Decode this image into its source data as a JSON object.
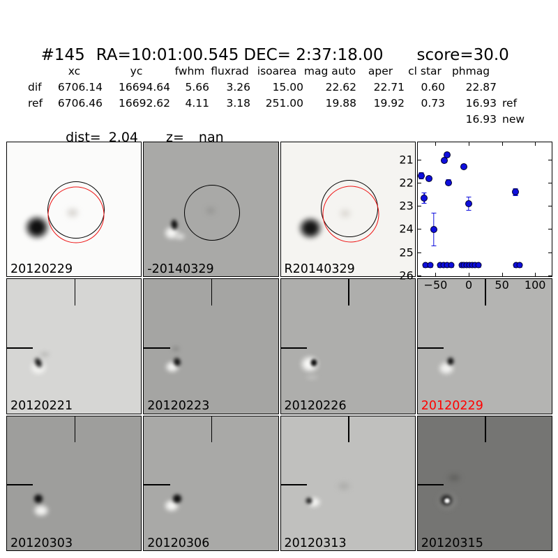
{
  "header": {
    "id": "#145",
    "ra": "RA=10:01:00.545",
    "dec": "DEC= 2:37:18.00",
    "score": "score=30.0"
  },
  "table": {
    "columns": [
      "xc",
      "yc",
      "fwhm",
      "fluxrad",
      "isoarea",
      "mag auto",
      "aper",
      "cl star",
      "phmag"
    ],
    "rows": [
      {
        "label": "dif",
        "values": [
          "6706.14",
          "16694.64",
          "5.66",
          "3.26",
          "15.00",
          "22.62",
          "22.71",
          "0.60",
          "22.87"
        ],
        "suffix": ""
      },
      {
        "label": "ref",
        "values": [
          "6706.46",
          "16692.62",
          "4.11",
          "3.18",
          "251.00",
          "19.88",
          "19.92",
          "0.73",
          "16.93"
        ],
        "suffix": "ref"
      }
    ],
    "extra_phmag": {
      "value": "16.93",
      "suffix": "new"
    },
    "dist_label": "dist=",
    "dist_value": "2.04",
    "z_label": "z=",
    "z_value": "nan"
  },
  "colors": {
    "highlight_label": "#ff0000",
    "marker_blue": "#0e0edd",
    "aperture_black": "#000000",
    "aperture_red": "#ee1111"
  },
  "panels": [
    {
      "kind": "stamp",
      "label": "20120229",
      "label_color": "#000000"
    },
    {
      "kind": "stamp",
      "label": "-20140329",
      "label_color": "#000000"
    },
    {
      "kind": "stamp",
      "label": "R20140329",
      "label_color": "#000000"
    },
    {
      "kind": "plot",
      "label": "",
      "label_color": "#000000"
    },
    {
      "kind": "stamp",
      "label": "20120221",
      "label_color": "#000000"
    },
    {
      "kind": "stamp",
      "label": "20120223",
      "label_color": "#000000"
    },
    {
      "kind": "stamp",
      "label": "20120226",
      "label_color": "#000000"
    },
    {
      "kind": "stamp",
      "label": "20120229",
      "label_color": "#ff0000"
    },
    {
      "kind": "stamp",
      "label": "20120303",
      "label_color": "#000000"
    },
    {
      "kind": "stamp",
      "label": "20120306",
      "label_color": "#000000"
    },
    {
      "kind": "stamp",
      "label": "20120313",
      "label_color": "#000000"
    },
    {
      "kind": "stamp",
      "label": "20120315",
      "label_color": "#000000"
    }
  ],
  "chart_data": {
    "type": "scatter",
    "title": "",
    "xlabel": "",
    "ylabel": "",
    "xlim": [
      -77,
      125
    ],
    "ylim": [
      26.05,
      20.25
    ],
    "y_axis_inverted": true,
    "grid": false,
    "xticks": [
      -50,
      0,
      50,
      100
    ],
    "xtick_labels": [
      "−50",
      "0",
      "50",
      "100"
    ],
    "yticks": [
      21,
      22,
      23,
      24,
      25,
      26
    ],
    "ytick_labels": [
      "21",
      "22",
      "23",
      "24",
      "25",
      "26"
    ],
    "marker_color": "#0e0edd",
    "series": [
      {
        "name": "detections",
        "points": [
          [
            -71,
            21.71,
            0.12
          ],
          [
            -67,
            22.66,
            0.22
          ],
          [
            -60,
            21.82,
            0.1
          ],
          [
            -53,
            24.02,
            0.7
          ],
          [
            -37,
            21.04,
            0.08
          ],
          [
            -33,
            20.79,
            0.08
          ],
          [
            -30,
            21.99,
            0.1
          ],
          [
            -7,
            21.3,
            0.08
          ],
          [
            0,
            22.9,
            0.28
          ],
          [
            70,
            22.4,
            0.13
          ]
        ]
      },
      {
        "name": "upper-limits",
        "points": [
          [
            -65,
            25.57,
            0.07
          ],
          [
            -58,
            25.57,
            0.07
          ],
          [
            -43,
            25.57,
            0.07
          ],
          [
            -38,
            25.57,
            0.07
          ],
          [
            -33,
            25.57,
            0.07
          ],
          [
            -26.5,
            25.57,
            0.07
          ],
          [
            -10.3,
            25.57,
            0.07
          ],
          [
            -6.9,
            25.57,
            0.07
          ],
          [
            -3.4,
            25.57,
            0.07
          ],
          [
            1.0,
            25.57,
            0.07
          ],
          [
            5.2,
            25.57,
            0.07
          ],
          [
            9.3,
            25.57,
            0.07
          ],
          [
            14.7,
            25.57,
            0.07
          ],
          [
            71,
            25.57,
            0.07
          ],
          [
            77,
            25.57,
            0.07
          ]
        ]
      }
    ]
  }
}
